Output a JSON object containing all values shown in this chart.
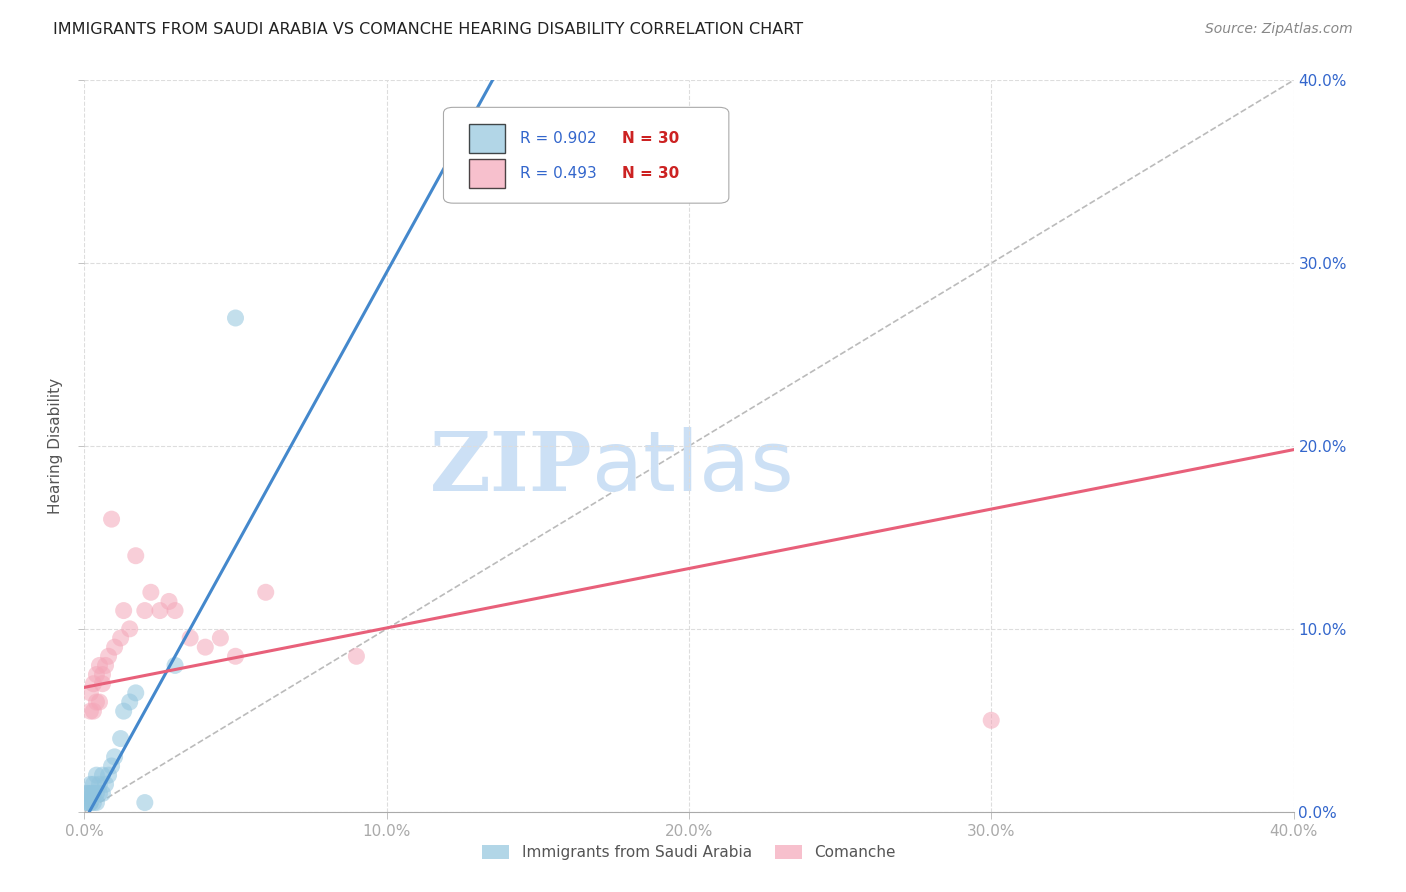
{
  "title": "IMMIGRANTS FROM SAUDI ARABIA VS COMANCHE HEARING DISABILITY CORRELATION CHART",
  "source": "Source: ZipAtlas.com",
  "ylabel": "Hearing Disability",
  "xlim": [
    0.0,
    0.4
  ],
  "ylim": [
    0.0,
    0.4
  ],
  "xtick_vals": [
    0.0,
    0.1,
    0.2,
    0.3,
    0.4
  ],
  "xtick_labels": [
    "0.0%",
    "10.0%",
    "20.0%",
    "30.0%",
    "40.0%"
  ],
  "ytick_vals": [
    0.0,
    0.1,
    0.2,
    0.3,
    0.4
  ],
  "ytick_labels_right": [
    "0.0%",
    "10.0%",
    "20.0%",
    "30.0%",
    "40.0%"
  ],
  "background_color": "#ffffff",
  "grid_color": "#dddddd",
  "blue_color": "#92c5de",
  "pink_color": "#f4a6b8",
  "blue_line_color": "#4488cc",
  "pink_line_color": "#e8607a",
  "diag_line_color": "#bbbbbb",
  "blue_R": "0.902",
  "blue_N": "30",
  "pink_R": "0.493",
  "pink_N": "30",
  "legend_label_blue": "Immigrants from Saudi Arabia",
  "legend_label_pink": "Comanche",
  "blue_line_slope": 3.0,
  "blue_line_intercept": -0.005,
  "pink_line_slope": 0.325,
  "pink_line_intercept": 0.068,
  "blue_scatter_x": [
    0.001,
    0.001,
    0.001,
    0.001,
    0.002,
    0.002,
    0.002,
    0.002,
    0.003,
    0.003,
    0.003,
    0.003,
    0.004,
    0.004,
    0.004,
    0.005,
    0.005,
    0.006,
    0.006,
    0.007,
    0.008,
    0.009,
    0.01,
    0.012,
    0.013,
    0.015,
    0.017,
    0.02,
    0.05,
    0.03
  ],
  "blue_scatter_y": [
    0.005,
    0.005,
    0.01,
    0.01,
    0.005,
    0.005,
    0.01,
    0.015,
    0.005,
    0.01,
    0.01,
    0.015,
    0.005,
    0.01,
    0.02,
    0.01,
    0.015,
    0.01,
    0.02,
    0.015,
    0.02,
    0.025,
    0.03,
    0.04,
    0.055,
    0.06,
    0.065,
    0.005,
    0.27,
    0.08
  ],
  "pink_scatter_x": [
    0.002,
    0.002,
    0.003,
    0.003,
    0.004,
    0.004,
    0.005,
    0.005,
    0.006,
    0.006,
    0.007,
    0.008,
    0.009,
    0.01,
    0.012,
    0.013,
    0.015,
    0.017,
    0.02,
    0.022,
    0.025,
    0.028,
    0.03,
    0.035,
    0.04,
    0.045,
    0.05,
    0.06,
    0.3,
    0.09
  ],
  "pink_scatter_y": [
    0.055,
    0.065,
    0.055,
    0.07,
    0.06,
    0.075,
    0.06,
    0.08,
    0.07,
    0.075,
    0.08,
    0.085,
    0.16,
    0.09,
    0.095,
    0.11,
    0.1,
    0.14,
    0.11,
    0.12,
    0.11,
    0.115,
    0.11,
    0.095,
    0.09,
    0.095,
    0.085,
    0.12,
    0.05,
    0.085
  ],
  "title_fontsize": 11.5,
  "source_fontsize": 10,
  "ylabel_fontsize": 11,
  "tick_label_fontsize": 11,
  "tick_label_color": "#3366cc",
  "watermark_zip": "ZIP",
  "watermark_atlas": "atlas",
  "watermark_color": "#cce0f5",
  "watermark_fontsize": 60
}
